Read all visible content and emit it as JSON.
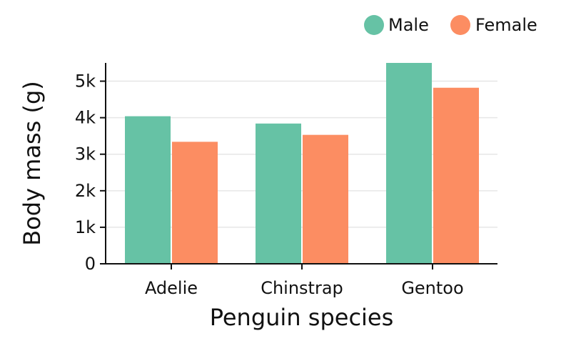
{
  "chart_data": {
    "type": "bar",
    "categories": [
      "Adelie",
      "Chinstrap",
      "Gentoo"
    ],
    "series": [
      {
        "name": "Male",
        "values": [
          4040,
          3840,
          5500
        ],
        "color": "#66c2a5"
      },
      {
        "name": "Female",
        "values": [
          3340,
          3530,
          4820
        ],
        "color": "#fc8d62"
      }
    ],
    "xlabel": "Penguin species",
    "ylabel": "Body mass (g)",
    "ylim": [
      0,
      5500
    ],
    "yticks": [
      0,
      1000,
      2000,
      3000,
      4000,
      5000
    ],
    "ytick_labels": [
      "0",
      "1k",
      "2k",
      "3k",
      "4k",
      "5k"
    ],
    "grid": "horizontal",
    "legend_position": "top-right",
    "colors": {
      "axis": "#111111",
      "grid": "#e6e6e6"
    }
  }
}
